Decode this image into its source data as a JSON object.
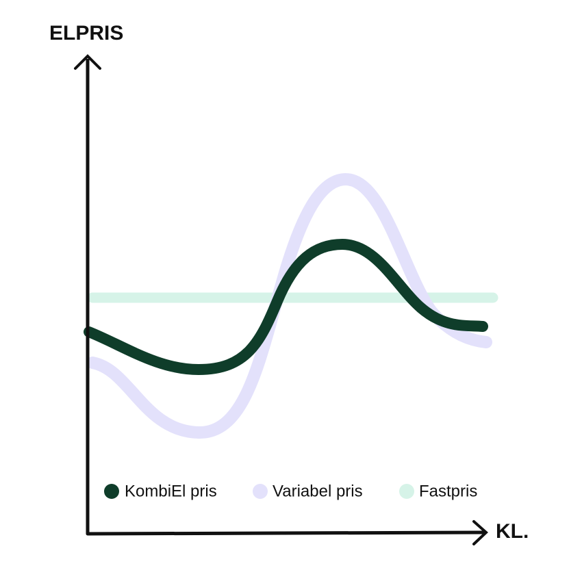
{
  "y_axis_label": "ELPRIS",
  "x_axis_label": "KL.",
  "legend": [
    "KombiEl pris",
    "Variabel pris",
    "Fastpris"
  ]
}
